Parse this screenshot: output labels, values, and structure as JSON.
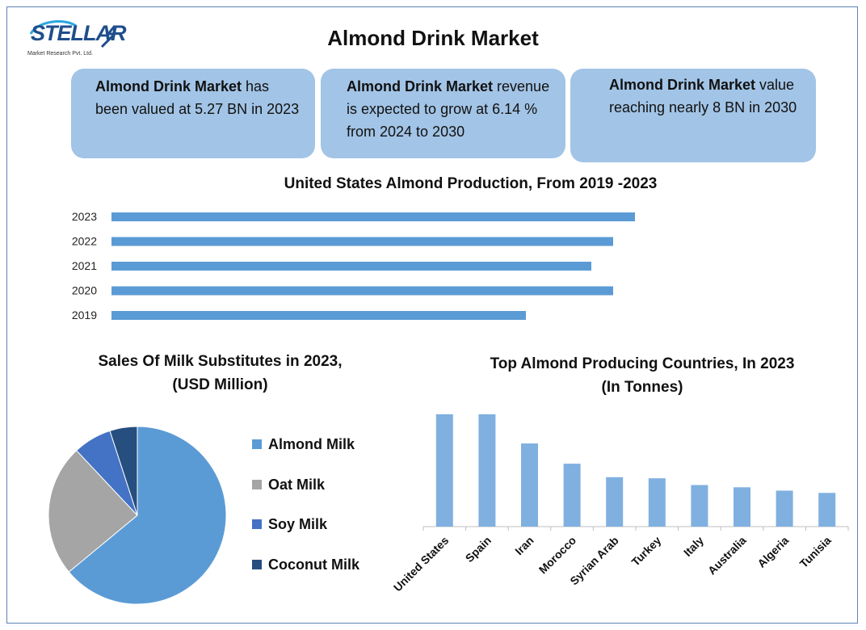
{
  "logo": {
    "text": "STELLAR",
    "subtitle": "Market Research Pvt. Ltd."
  },
  "title": "Almond Drink Market",
  "cards": [
    {
      "bold": "Almond Drink Market",
      "text": " has been valued at 5.27 BN in 2023"
    },
    {
      "bold": "Almond Drink Market",
      "text": " revenue is expected to grow at 6.14 % from 2024 to 2030"
    },
    {
      "bold": "Almond Drink Market",
      "text": " value reaching nearly 8 BN in 2030"
    }
  ],
  "colors": {
    "bar": "#5b9bd5",
    "column": "#7fb0e0",
    "card": "#a2c4e6",
    "frame": "#5b84b5"
  },
  "chart_data": [
    {
      "type": "bar",
      "orientation": "horizontal",
      "title": "United States Almond Production, From 2019 -2023",
      "categories": [
        "2023",
        "2022",
        "2021",
        "2020",
        "2019"
      ],
      "values": [
        2.4,
        2.3,
        2.2,
        2.3,
        1.9
      ],
      "xlim": [
        0,
        3
      ],
      "grid": false
    },
    {
      "type": "pie",
      "title": "Sales Of Milk Substitutes in 2023,",
      "subtitle": "(USD Million)",
      "labels": [
        "Almond Milk",
        "Oat Milk",
        "Soy Milk",
        "Coconut Milk"
      ],
      "values": [
        64,
        24,
        7,
        5
      ],
      "colors": [
        "#5b9bd5",
        "#a5a5a5",
        "#4472c4",
        "#264f7f"
      ],
      "legend": "right"
    },
    {
      "type": "bar",
      "orientation": "vertical",
      "title": "Top Almond Producing Countries, In 2023",
      "subtitle": "(In Tonnes)",
      "categories": [
        "United States",
        "Spain",
        "Iran",
        "Morocco",
        "Syrian Arab",
        "Turkey",
        "Italy",
        "Australia",
        "Algeria",
        "Tunisia"
      ],
      "values": [
        100,
        100,
        74,
        56,
        44,
        43,
        37,
        35,
        32,
        30
      ],
      "ylim": [
        0,
        115
      ],
      "grid": false
    }
  ]
}
